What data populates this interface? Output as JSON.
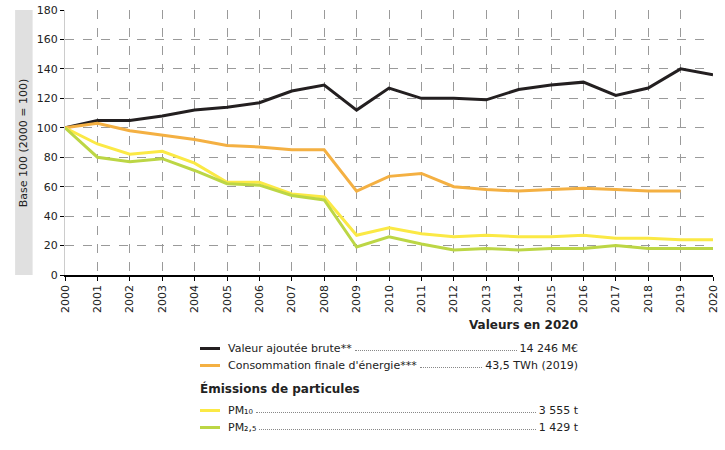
{
  "chart_data": {
    "type": "line",
    "y_label": "Base 100 (2000 = 100)",
    "x": [
      2000,
      2001,
      2002,
      2003,
      2004,
      2005,
      2006,
      2007,
      2008,
      2009,
      2010,
      2011,
      2012,
      2013,
      2014,
      2015,
      2016,
      2017,
      2018,
      2019,
      2020
    ],
    "xlim": [
      2000,
      2020
    ],
    "xticks": [
      2000,
      2001,
      2002,
      2003,
      2004,
      2005,
      2006,
      2007,
      2008,
      2009,
      2010,
      2011,
      2012,
      2013,
      2014,
      2015,
      2016,
      2017,
      2018,
      2019,
      2020
    ],
    "ylim": [
      0,
      180
    ],
    "yticks": [
      0,
      20,
      40,
      60,
      80,
      100,
      120,
      140,
      160,
      180
    ],
    "grid": true,
    "legend": "bottom",
    "legend_title": "Valeurs en 2020",
    "series": [
      {
        "name": "Valeur ajoutée brute**",
        "color": "#231f20",
        "legend_value": "14 246 M€",
        "values": [
          100,
          105,
          105,
          108,
          112,
          114,
          117,
          125,
          129,
          112,
          127,
          120,
          120,
          119,
          126,
          129,
          131,
          122,
          127,
          140,
          136
        ]
      },
      {
        "name": "Consommation finale d'énergie***",
        "color": "#f4b042",
        "legend_value": "43,5 TWh (2019)",
        "values": [
          100,
          103,
          98,
          95,
          92,
          88,
          87,
          85,
          85,
          57,
          67,
          69,
          60,
          58,
          57,
          58,
          59,
          58,
          57,
          57,
          null
        ]
      },
      {
        "name": "PM₁₀",
        "color": "#fbe945",
        "legend_value": "3 555 t",
        "group": "Émissions de particules",
        "values": [
          100,
          89,
          82,
          84,
          76,
          63,
          63,
          55,
          53,
          27,
          32,
          28,
          26,
          27,
          26,
          26,
          27,
          25,
          25,
          24,
          24
        ]
      },
      {
        "name": "PM₂,₅",
        "color": "#bcd645",
        "legend_value": "1 429 t",
        "group": "Émissions de particules",
        "values": [
          100,
          80,
          77,
          79,
          71,
          62,
          61,
          54,
          51,
          19,
          26,
          21,
          17,
          18,
          17,
          18,
          18,
          20,
          18,
          18,
          18
        ]
      }
    ]
  }
}
